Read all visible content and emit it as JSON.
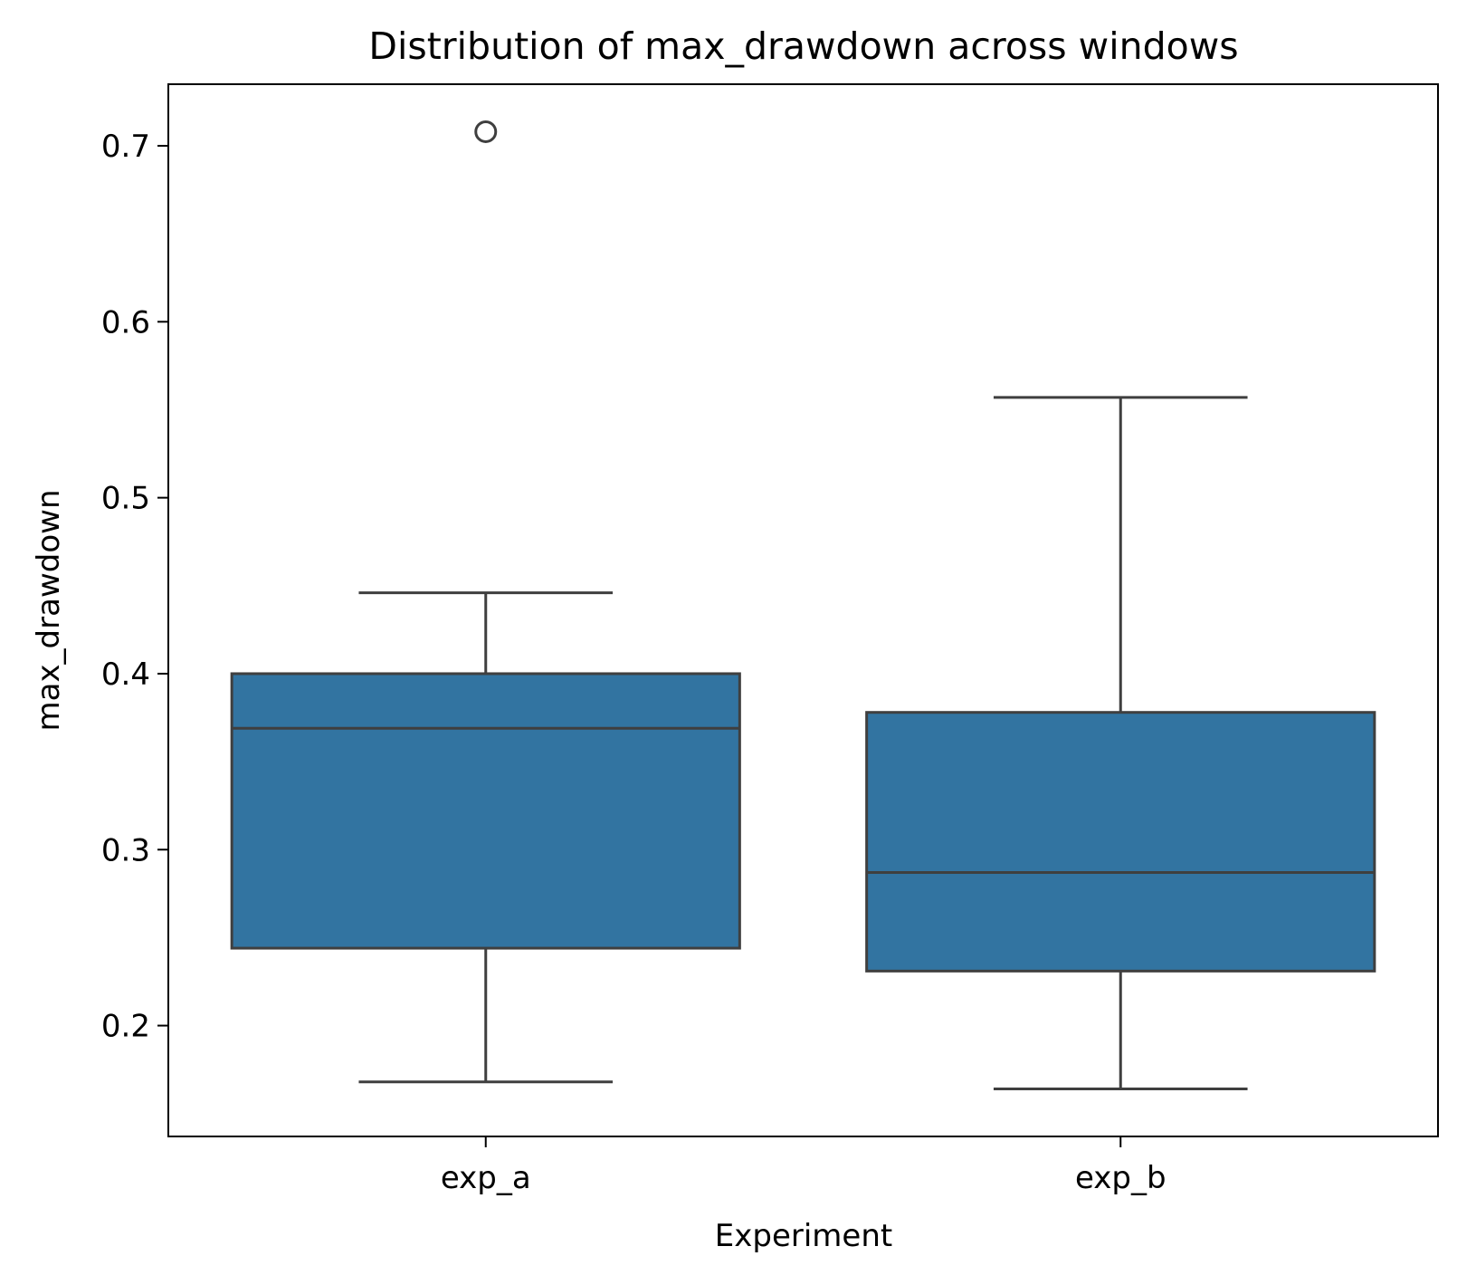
{
  "chart_data": {
    "type": "box",
    "title": "Distribution of max_drawdown across windows",
    "xlabel": "Experiment",
    "ylabel": "max_drawdown",
    "ylim": [
      0.137,
      0.735
    ],
    "yticks": [
      0.2,
      0.3,
      0.4,
      0.5,
      0.6,
      0.7
    ],
    "yticklabels": [
      "0.2",
      "0.3",
      "0.4",
      "0.5",
      "0.6",
      "0.7"
    ],
    "grid": false,
    "legend": "none",
    "box_color": "#3274a1",
    "line_color": "#3f3f3f",
    "categories": [
      "exp_a",
      "exp_b"
    ],
    "boxes": [
      {
        "category": "exp_a",
        "whisker_low": 0.168,
        "q1": 0.244,
        "median": 0.369,
        "q3": 0.4,
        "whisker_high": 0.446,
        "outliers": [
          0.708
        ]
      },
      {
        "category": "exp_b",
        "whisker_low": 0.164,
        "q1": 0.231,
        "median": 0.287,
        "q3": 0.378,
        "whisker_high": 0.557,
        "outliers": []
      }
    ]
  }
}
